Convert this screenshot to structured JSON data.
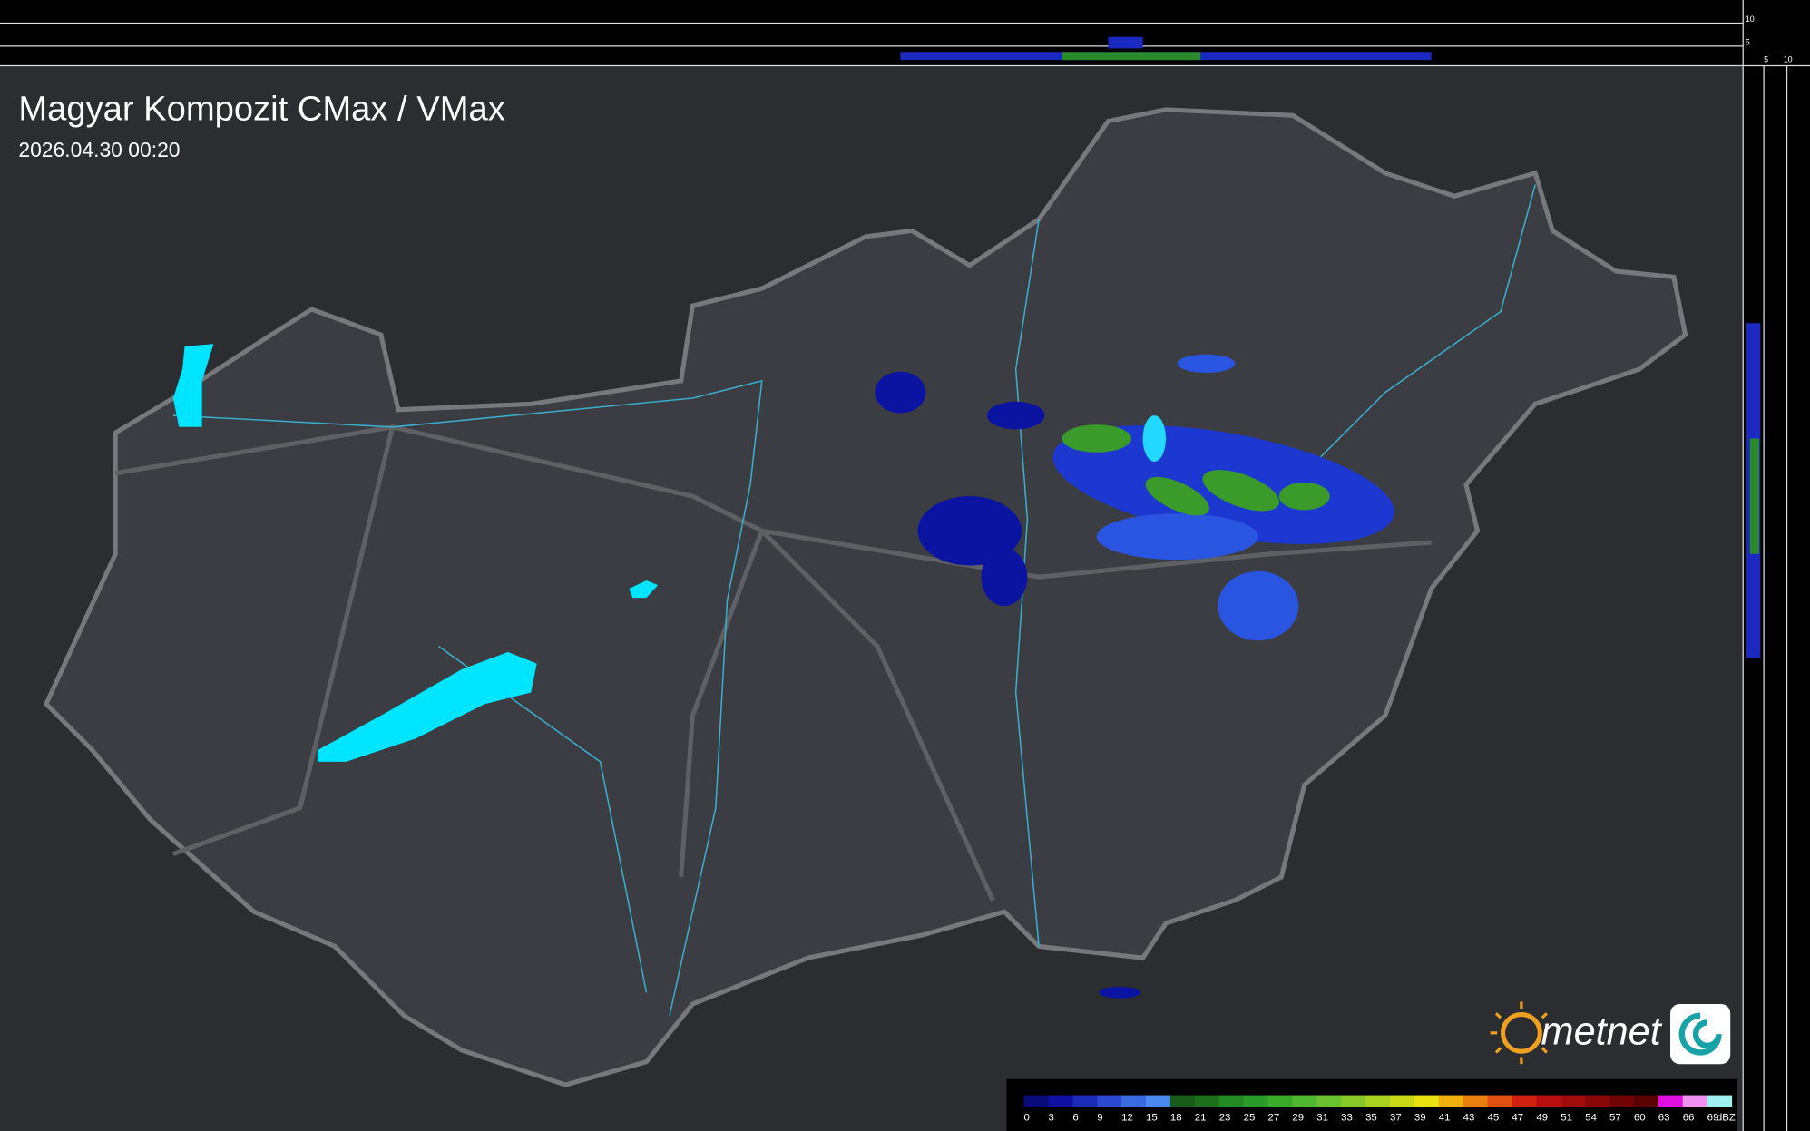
{
  "header": {
    "title": "Magyar Kompozit CMax / VMax",
    "timestamp": "2026.04.30 00:20"
  },
  "profile_axes": {
    "top": [
      "10",
      "5"
    ],
    "side": [
      "5",
      "10"
    ]
  },
  "logo": {
    "text": "metnet"
  },
  "legend": {
    "labels": [
      0,
      3,
      6,
      9,
      12,
      15,
      18,
      21,
      23,
      25,
      27,
      29,
      31,
      33,
      35,
      37,
      39,
      41,
      43,
      45,
      47,
      49,
      51,
      54,
      57,
      60,
      63,
      66,
      69
    ],
    "colors": [
      "#0a0a7a",
      "#1010a0",
      "#1c2ab8",
      "#2a48d0",
      "#3a6ae0",
      "#4a8af0",
      "#1a5a1a",
      "#1e6e1e",
      "#248a24",
      "#2a9a2a",
      "#3aaa2a",
      "#50b830",
      "#6ac030",
      "#88c828",
      "#a8d020",
      "#c8d818",
      "#e8e010",
      "#f0b010",
      "#e88010",
      "#e05010",
      "#d02010",
      "#b81010",
      "#a00c0c",
      "#880808",
      "#700404",
      "#580202",
      "#e010e0",
      "#f090f0",
      "#a0f0f0"
    ],
    "unit": "dBZ"
  }
}
